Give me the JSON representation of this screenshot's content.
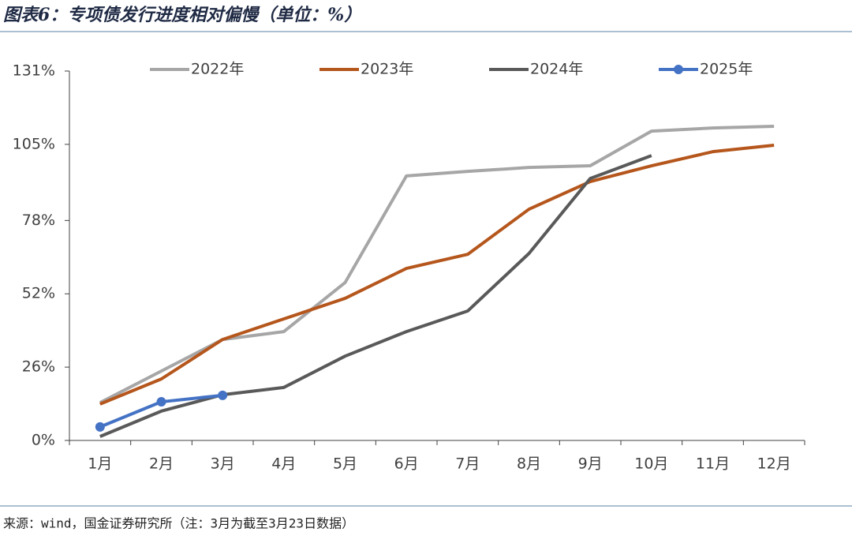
{
  "chart_data": {
    "type": "line",
    "title": "图表6：专项债发行进度相对偏慢（单位：%）",
    "source": "来源：wind，国金证券研究所（注：3月为截至3月23日数据）",
    "categories": [
      "1月",
      "2月",
      "3月",
      "4月",
      "5月",
      "6月",
      "7月",
      "8月",
      "9月",
      "10月",
      "11月",
      "12月"
    ],
    "series": [
      {
        "name": "2022年",
        "color": "#a6a6a6",
        "values": [
          13.4,
          24.6,
          35.8,
          38.6,
          56,
          93.8,
          95.4,
          96.8,
          97.4,
          109.7,
          110.8,
          111.4
        ]
      },
      {
        "name": "2023年",
        "color": "#b5561c",
        "values": [
          12.9,
          21.8,
          35.8,
          43.1,
          50.4,
          61,
          66,
          82,
          91.8,
          97.4,
          102.4,
          104.7
        ]
      },
      {
        "name": "2024年",
        "color": "#595959",
        "values": [
          1.4,
          10.4,
          16.2,
          18.8,
          29.9,
          38.6,
          45.9,
          66.3,
          92.9,
          101,
          null,
          null
        ]
      },
      {
        "name": "2025年",
        "color": "#4472c4",
        "marker": true,
        "values": [
          4.8,
          13.7,
          16,
          null,
          null,
          null,
          null,
          null,
          null,
          null,
          null,
          null
        ]
      }
    ],
    "ylim": [
      0,
      131
    ],
    "yticks": [
      {
        "value": 0,
        "label": "0%"
      },
      {
        "value": 26,
        "label": "26%"
      },
      {
        "value": 52,
        "label": "52%"
      },
      {
        "value": 78,
        "label": "78%"
      },
      {
        "value": 105,
        "label": "105%"
      },
      {
        "value": 131,
        "label": "131%"
      }
    ],
    "legend": "top"
  }
}
